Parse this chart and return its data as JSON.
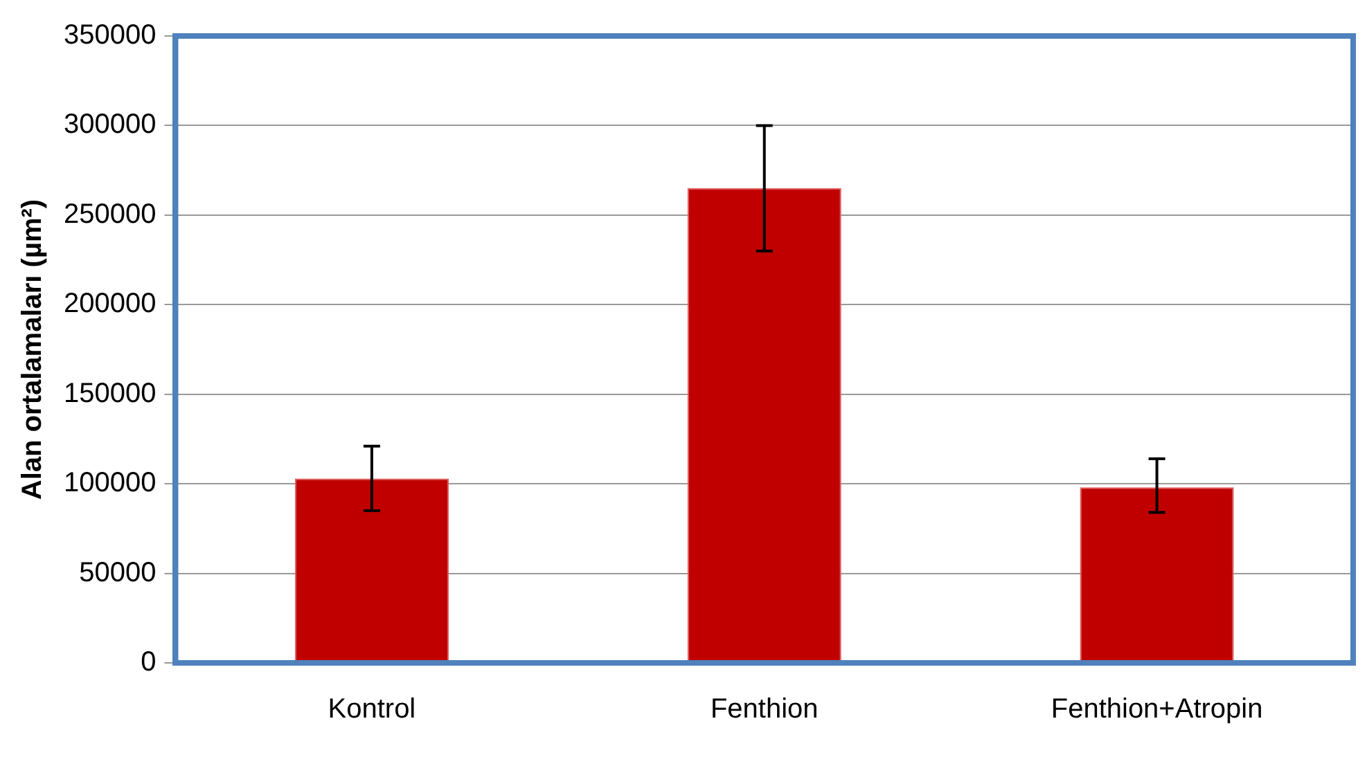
{
  "chart_data": {
    "type": "bar",
    "ylabel": "Alan ortalamaları (µm²)",
    "categories": [
      "Kontrol",
      "Fenthion",
      "Fenthion+Atropin"
    ],
    "values": [
      103000,
      265000,
      98000
    ],
    "errors": [
      [
        85000,
        121000
      ],
      [
        230000,
        300000
      ],
      [
        84000,
        114000
      ]
    ],
    "color": "#c00000",
    "ylim": [
      0,
      350000
    ],
    "yticks": [
      0,
      50000,
      100000,
      150000,
      200000,
      250000,
      300000,
      350000
    ],
    "grid": "y",
    "legend": false
  }
}
